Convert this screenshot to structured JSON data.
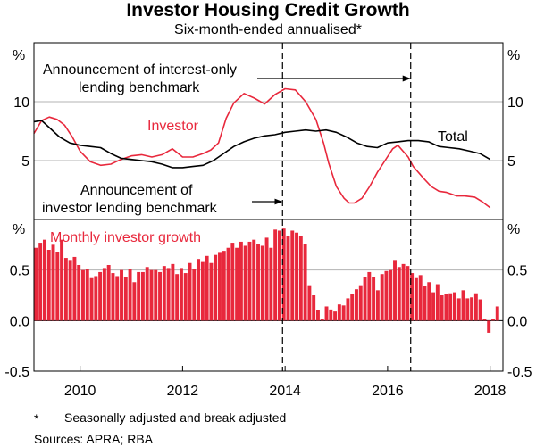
{
  "title": "Investor Housing Credit Growth",
  "subtitle": "Six-month-ended annualised*",
  "footnote": {
    "marker": "*",
    "text": "Seasonally adjusted and break adjusted"
  },
  "sources": "Sources: APRA; RBA",
  "colors": {
    "investor": "#e8283c",
    "total": "#000000",
    "bars": "#e8283c",
    "grid": "#b3b3b3"
  },
  "chart_data": [
    {
      "type": "line",
      "panel": "top",
      "unit_left": "%",
      "unit_right": "%",
      "yticks": [
        "5",
        "10"
      ],
      "ylim": [
        0,
        15
      ],
      "xlim": [
        2009.6,
        2018.75
      ],
      "xticks": [
        "2010",
        "2012",
        "2014",
        "2016",
        "2018"
      ],
      "series": [
        {
          "name": "Investor",
          "x": [
            2009.6,
            2009.75,
            2009.9,
            2010.05,
            2010.2,
            2010.35,
            2010.5,
            2010.7,
            2010.9,
            2011.1,
            2011.3,
            2011.5,
            2011.7,
            2011.9,
            2012.1,
            2012.3,
            2012.5,
            2012.7,
            2012.9,
            2013.05,
            2013.2,
            2013.35,
            2013.5,
            2013.7,
            2013.9,
            2014.1,
            2014.3,
            2014.5,
            2014.7,
            2014.9,
            2015.1,
            2015.25,
            2015.35,
            2015.5,
            2015.65,
            2015.75,
            2015.85,
            2016.0,
            2016.15,
            2016.3,
            2016.45,
            2016.6,
            2016.7,
            2016.8,
            2016.9,
            2017.0,
            2017.2,
            2017.35,
            2017.5,
            2017.65,
            2017.85,
            2018.0,
            2018.2,
            2018.35,
            2018.5
          ],
          "values": [
            7.3,
            8.4,
            8.7,
            8.5,
            8.0,
            7.0,
            5.8,
            4.9,
            4.6,
            4.7,
            5.1,
            5.4,
            5.5,
            5.3,
            5.5,
            6.0,
            5.3,
            5.3,
            5.6,
            5.9,
            6.5,
            8.6,
            9.9,
            10.7,
            10.3,
            9.8,
            10.6,
            11.1,
            11.0,
            10.0,
            8.5,
            6.5,
            4.8,
            2.8,
            1.8,
            1.4,
            1.4,
            1.8,
            2.8,
            4.0,
            5.0,
            6.0,
            6.3,
            5.8,
            5.3,
            4.5,
            3.5,
            2.8,
            2.4,
            2.3,
            2.0,
            2.0,
            1.9,
            1.5,
            1.0
          ]
        },
        {
          "name": "Total",
          "x": [
            2009.6,
            2009.75,
            2009.9,
            2010.1,
            2010.3,
            2010.5,
            2010.7,
            2010.9,
            2011.1,
            2011.3,
            2011.5,
            2011.7,
            2011.9,
            2012.1,
            2012.3,
            2012.5,
            2012.7,
            2012.9,
            2013.1,
            2013.3,
            2013.5,
            2013.7,
            2013.9,
            2014.1,
            2014.3,
            2014.5,
            2014.7,
            2014.9,
            2015.1,
            2015.3,
            2015.5,
            2015.7,
            2015.9,
            2016.1,
            2016.3,
            2016.5,
            2016.7,
            2016.9,
            2017.1,
            2017.3,
            2017.5,
            2017.7,
            2017.9,
            2018.1,
            2018.3,
            2018.5
          ],
          "values": [
            8.3,
            8.4,
            7.8,
            7.0,
            6.5,
            6.3,
            6.2,
            6.1,
            5.6,
            5.2,
            5.1,
            5.0,
            4.9,
            4.7,
            4.4,
            4.4,
            4.5,
            4.6,
            5.0,
            5.6,
            6.2,
            6.6,
            6.9,
            7.1,
            7.2,
            7.4,
            7.5,
            7.6,
            7.5,
            7.6,
            7.4,
            7.0,
            6.5,
            6.2,
            6.1,
            6.5,
            6.6,
            6.7,
            6.7,
            6.6,
            6.2,
            6.1,
            6.0,
            5.8,
            5.6,
            5.1
          ]
        }
      ],
      "annotations": [
        {
          "text": [
            "Announcement of interest-only",
            "lending benchmark"
          ],
          "x": 2016.95,
          "arrow_to": "right"
        },
        {
          "text": [
            "Announcement of",
            "investor lending benchmark"
          ],
          "x": 2014.45,
          "arrow_to": "right"
        }
      ],
      "vlines": [
        2014.45,
        2016.95
      ]
    },
    {
      "type": "bar",
      "panel": "bottom",
      "name": "Monthly investor growth",
      "unit_left": "%",
      "unit_right": "%",
      "yticks": [
        "-0.5",
        "0.0",
        "0.5"
      ],
      "ylim": [
        -0.5,
        1.0
      ],
      "x_start": 2009.6,
      "x_step": 0.08333,
      "values": [
        0.72,
        0.77,
        0.8,
        0.7,
        0.75,
        0.68,
        0.8,
        0.62,
        0.6,
        0.63,
        0.55,
        0.5,
        0.51,
        0.42,
        0.44,
        0.48,
        0.52,
        0.55,
        0.47,
        0.44,
        0.5,
        0.43,
        0.51,
        0.38,
        0.48,
        0.48,
        0.53,
        0.5,
        0.5,
        0.48,
        0.54,
        0.52,
        0.56,
        0.46,
        0.52,
        0.47,
        0.57,
        0.51,
        0.61,
        0.58,
        0.64,
        0.57,
        0.65,
        0.67,
        0.69,
        0.72,
        0.77,
        0.72,
        0.78,
        0.74,
        0.78,
        0.8,
        0.76,
        0.74,
        0.82,
        0.72,
        0.9,
        0.89,
        0.91,
        0.84,
        0.89,
        0.87,
        0.84,
        0.76,
        0.35,
        0.25,
        0.1,
        0.02,
        0.14,
        0.11,
        0.09,
        0.16,
        0.15,
        0.22,
        0.26,
        0.31,
        0.35,
        0.43,
        0.48,
        0.43,
        0.3,
        0.46,
        0.49,
        0.5,
        0.6,
        0.53,
        0.56,
        0.54,
        0.47,
        0.42,
        0.45,
        0.34,
        0.38,
        0.28,
        0.36,
        0.25,
        0.26,
        0.27,
        0.28,
        0.22,
        0.3,
        0.22,
        0.23,
        0.27,
        0.21,
        0.02,
        -0.12,
        0.02,
        0.14
      ]
    }
  ]
}
